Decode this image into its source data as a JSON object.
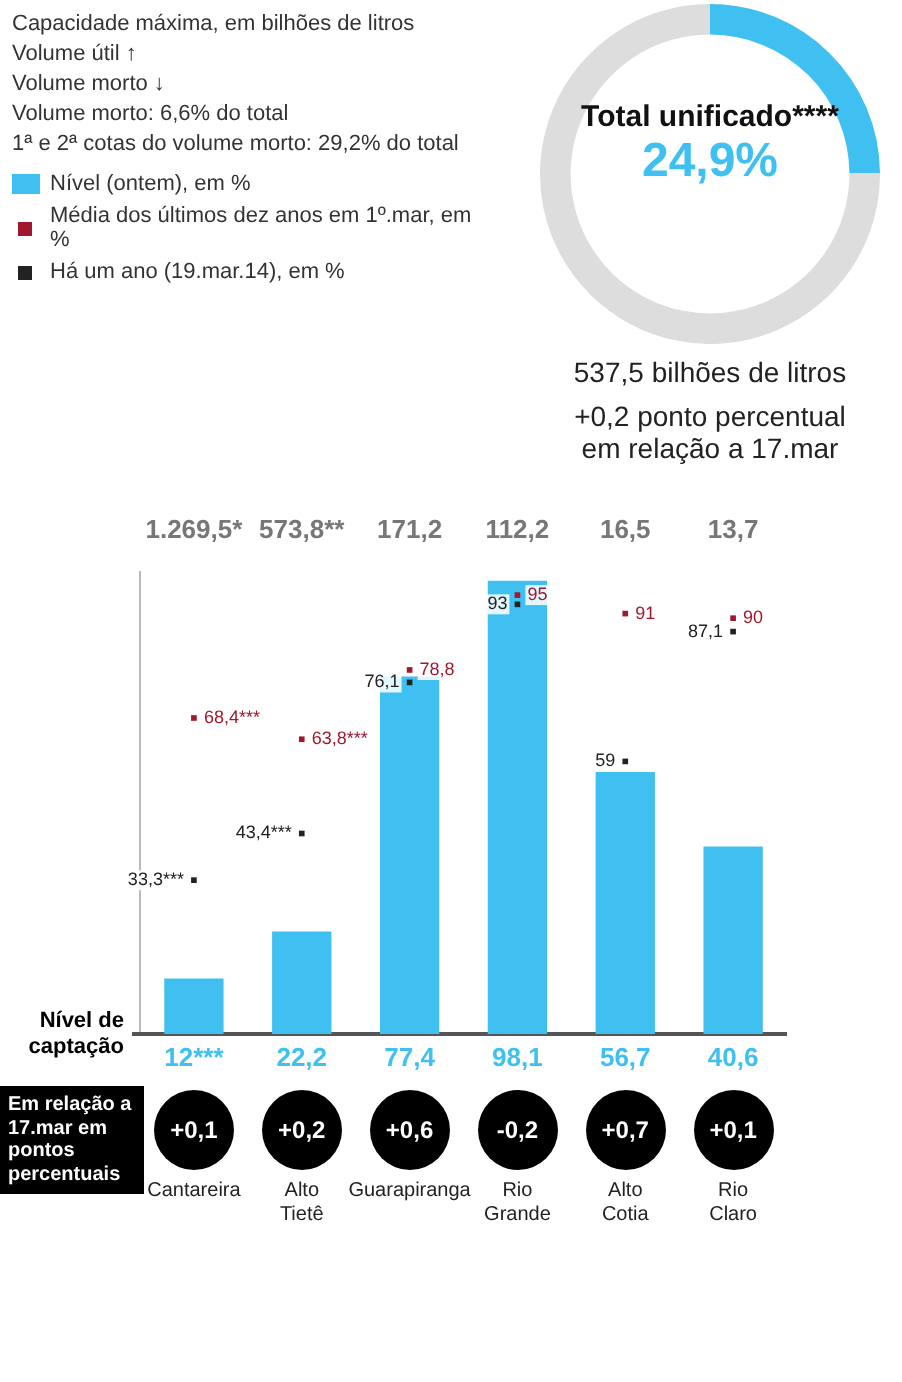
{
  "chart_data": [
    {
      "type": "bar",
      "categories": [
        "Cantareira",
        "Alto Tietê",
        "Guarapiranga",
        "Rio Grande",
        "Alto Cotia",
        "Rio Claro"
      ],
      "tick_labels": "x",
      "ylim": [
        0,
        100
      ],
      "legend": "top left",
      "marker": "square",
      "series": [
        {
          "type": "bar",
          "name": "Nível (ontem), em %",
          "color": "#40c0f0",
          "values": [
            12,
            22.2,
            77.4,
            98.1,
            56.7,
            40.6
          ],
          "value_labels": [
            "12***",
            "22,2",
            "77,4",
            "98,1",
            "56,7",
            "40,6"
          ]
        },
        {
          "type": "scatter",
          "name": "Média dos últimos dez anos em 1º.mar, em %",
          "color": "#a0182e",
          "values": [
            68.4,
            63.8,
            78.8,
            95,
            91,
            90
          ],
          "value_labels": [
            "68,4***",
            "63,8***",
            "78,8",
            "95",
            "91",
            "90"
          ]
        },
        {
          "type": "scatter",
          "name": "Há um ano (19.mar.14), em %",
          "color": "#222222",
          "values": [
            33.3,
            43.4,
            76.1,
            93,
            59,
            87.1
          ],
          "value_labels": [
            "33,3***",
            "43,4***",
            "76,1",
            "93",
            "59",
            "87,1"
          ]
        }
      ],
      "ref_lines": [
        {
          "axis": "y",
          "value": 0,
          "label": "Nível de captação"
        }
      ],
      "annotations": [
        "Capacidade máxima, em bilhões de litros",
        "1.269,5*",
        "573,8**",
        "171,2",
        "112,2",
        "16,5",
        "13,7",
        "Volume útil ↑",
        "Volume morto ↓",
        "Volume morto: 6,6% do total",
        "1ª e 2ª cotas do volume morto: 29,2% do total"
      ]
    },
    {
      "type": "donut",
      "title": "Total unificado****",
      "categories": [
        null,
        null
      ],
      "values": [
        24.9,
        75.1
      ],
      "colors": [
        "#40c0f0",
        "#dddddd"
      ],
      "value_labels": [
        "24,9%",
        null
      ],
      "annotations": [
        "537,5 bilhões de litros",
        "+0,2 ponto percentual em relação a 17.mar"
      ]
    },
    {
      "type": "other",
      "title": "Em relação a 17.mar em pontos percentuais",
      "values": [
        0.1,
        0.2,
        0.6,
        -0.2,
        0.7,
        0.1
      ],
      "value_labels": [
        "+0,1",
        "+0,2",
        "+0,6",
        "-0,2",
        "+0,7",
        "+0,1"
      ]
    }
  ]
}
